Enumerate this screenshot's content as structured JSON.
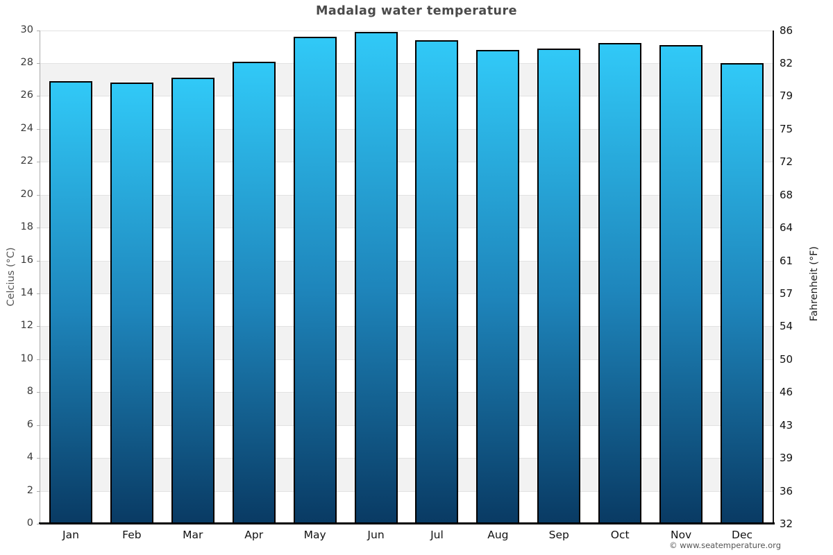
{
  "title": "Madalag water temperature",
  "footer": {
    "copyright": "© www.seatemperature.org"
  },
  "chart_data": {
    "type": "bar",
    "title": "Madalag water temperature",
    "categories": [
      "Jan",
      "Feb",
      "Mar",
      "Apr",
      "May",
      "Jun",
      "Jul",
      "Aug",
      "Sep",
      "Oct",
      "Nov",
      "Dec"
    ],
    "series": [
      {
        "name": "Water temperature (°C)",
        "values": [
          26.9,
          26.8,
          27.1,
          28.1,
          29.6,
          29.9,
          29.4,
          28.8,
          28.9,
          29.2,
          29.1,
          28.0
        ]
      }
    ],
    "xlabel": "",
    "ylabel_left": "Celcius (°C)",
    "ylabel_right": "Fahrenheit (°F)",
    "ylim_celsius": [
      0,
      30
    ],
    "celsius_ticks": [
      0,
      2,
      4,
      6,
      8,
      10,
      12,
      14,
      16,
      18,
      20,
      22,
      24,
      26,
      28,
      30
    ],
    "fahrenheit_tick_labels": [
      "32",
      "36",
      "39",
      "43",
      "46",
      "50",
      "54",
      "57",
      "61",
      "64",
      "68",
      "72",
      "75",
      "79",
      "82",
      "86"
    ],
    "legend": "none",
    "grid": "horizontal lines every 2°C with alternating shaded bands",
    "colors": {
      "bar_gradient_top": "#31c9f7",
      "bar_gradient_mid": "#1e85bb",
      "bar_gradient_bottom": "#093a63",
      "bar_border": "#000000",
      "band_shade": "#f2f2f2",
      "gridline": "#e2e2e2",
      "left_spine": "#aaaaaa",
      "right_spine": "#111111",
      "bottom_axis": "#000000",
      "title_text": "#4a4a4a"
    }
  }
}
